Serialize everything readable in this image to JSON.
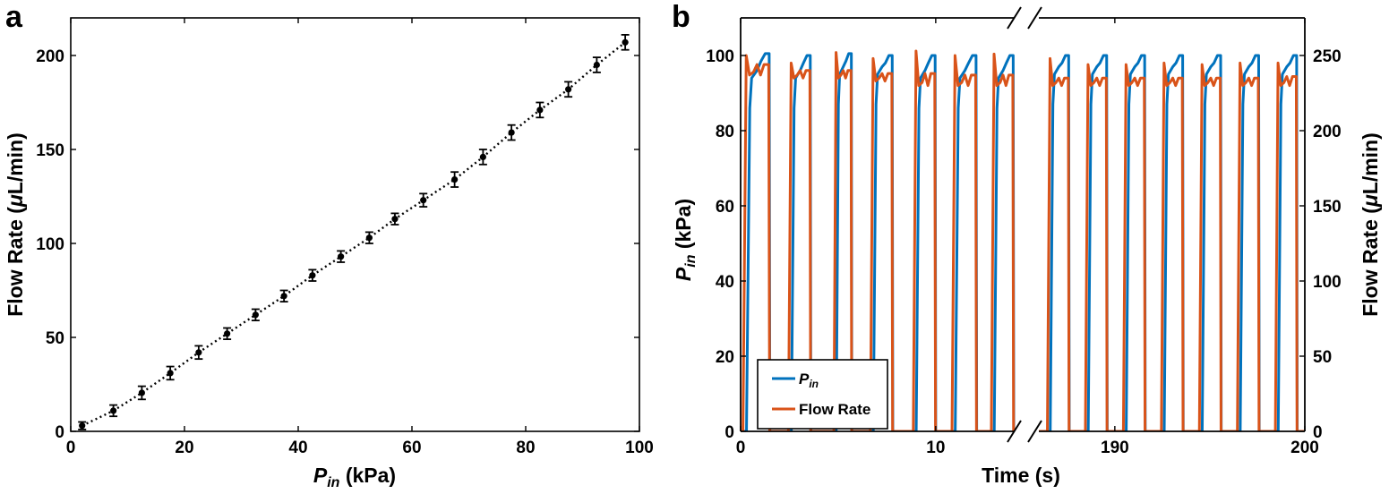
{
  "panel_a": {
    "letter": "a",
    "xlabel_italic": "P",
    "xlabel_sub": "in",
    "xlabel_unit": " (kPa)",
    "ylabel_pre": "Flow Rate (",
    "ylabel_mu": "μ",
    "ylabel_post": "L/min)"
  },
  "panel_b": {
    "letter": "b",
    "xlabel": "Time (s)",
    "ylabel_left_italic": "P",
    "ylabel_left_sub": "in",
    "ylabel_left_unit": " (kPa)",
    "ylabel_right_pre": "Flow Rate (",
    "ylabel_right_mu": "μ",
    "ylabel_right_post": "L/min)",
    "legend": {
      "pin_italic": "P",
      "pin_sub": "in",
      "flow": "Flow Rate"
    }
  },
  "chart_data": [
    {
      "panel": "a",
      "type": "scatter",
      "x": [
        2,
        7.5,
        12.5,
        17.5,
        22.5,
        27.5,
        32.5,
        37.5,
        42.5,
        47.5,
        52.5,
        57,
        62,
        67.5,
        72.5,
        77.5,
        82.5,
        87.5,
        92.5,
        97.5
      ],
      "y": [
        3,
        11,
        20.5,
        31,
        42,
        52,
        62,
        72,
        83,
        93,
        103,
        113,
        123,
        134,
        146,
        159,
        171,
        182,
        195,
        207
      ],
      "error": [
        2,
        3,
        3.5,
        3.5,
        3.5,
        3,
        3,
        3,
        3,
        3,
        3,
        3,
        3.5,
        4,
        4,
        4,
        4,
        4,
        4,
        4
      ],
      "fit": "dotted",
      "xlim": [
        0,
        100
      ],
      "ylim": [
        0,
        220
      ],
      "xticks": [
        0,
        20,
        40,
        60,
        80,
        100
      ],
      "yticks": [
        0,
        50,
        100,
        150,
        200
      ],
      "color": "#000000"
    },
    {
      "panel": "b",
      "type": "line",
      "broken_x_axis": true,
      "xticks": [
        0,
        10,
        190,
        200
      ],
      "ylim_left": [
        0,
        110
      ],
      "yticks_left": [
        0,
        20,
        40,
        60,
        80,
        100
      ],
      "ylim_right": [
        0,
        275
      ],
      "yticks_right": [
        0,
        50,
        100,
        150,
        200,
        250
      ],
      "legend_position": "bottom-left",
      "series": [
        {
          "name": "Pin",
          "color": "#0072BD",
          "pulses_segment1": [
            {
              "rise": 0.3,
              "fall": 1.5,
              "peaks": [
                94,
                100.5
              ]
            },
            {
              "rise": 2.6,
              "fall": 3.6,
              "peaks": [
                94,
                100
              ]
            },
            {
              "rise": 4.9,
              "fall": 5.7,
              "peaks": [
                95,
                100.5
              ]
            },
            {
              "rise": 6.8,
              "fall": 7.8,
              "peaks": [
                95,
                100
              ]
            },
            {
              "rise": 9.0,
              "fall": 10.0,
              "peaks": [
                94,
                100
              ]
            },
            {
              "rise": 11.0,
              "fall": 12.1,
              "peaks": [
                94,
                100
              ]
            },
            {
              "rise": 13.0,
              "fall": 14.0,
              "peaks": [
                94,
                100
              ]
            }
          ],
          "pulses_segment2": [
            {
              "rise": 186.6,
              "fall": 187.6,
              "peaks": [
                95,
                100
              ]
            },
            {
              "rise": 188.6,
              "fall": 189.6,
              "peaks": [
                95,
                100
              ]
            },
            {
              "rise": 190.6,
              "fall": 191.6,
              "peaks": [
                95,
                100
              ]
            },
            {
              "rise": 192.6,
              "fall": 193.6,
              "peaks": [
                95,
                100
              ]
            },
            {
              "rise": 194.6,
              "fall": 195.6,
              "peaks": [
                95,
                100
              ]
            },
            {
              "rise": 196.6,
              "fall": 197.6,
              "peaks": [
                95,
                100
              ]
            },
            {
              "rise": 198.6,
              "fall": 199.6,
              "peaks": [
                95,
                100
              ]
            }
          ]
        },
        {
          "name": "Flow Rate",
          "color": "#D95319",
          "pulses_segment1": [
            {
              "rise": 0.3,
              "fall": 1.5,
              "peaks": [
                250,
                237,
                244
              ]
            },
            {
              "rise": 2.6,
              "fall": 3.6,
              "peaks": [
                245,
                235,
                240
              ]
            },
            {
              "rise": 4.9,
              "fall": 5.7,
              "peaks": [
                252,
                235,
                240
              ]
            },
            {
              "rise": 6.8,
              "fall": 7.8,
              "peaks": [
                248,
                233,
                238
              ]
            },
            {
              "rise": 9.0,
              "fall": 10.0,
              "peaks": [
                253,
                230,
                238
              ]
            },
            {
              "rise": 11.0,
              "fall": 12.1,
              "peaks": [
                250,
                230,
                237
              ]
            },
            {
              "rise": 13.0,
              "fall": 14.0,
              "peaks": [
                251,
                230,
                237
              ]
            }
          ],
          "pulses_segment2": [
            {
              "rise": 186.6,
              "fall": 187.6,
              "peaks": [
                248,
                230,
                235
              ]
            },
            {
              "rise": 188.6,
              "fall": 189.6,
              "peaks": [
                244,
                230,
                235
              ]
            },
            {
              "rise": 190.6,
              "fall": 191.6,
              "peaks": [
                244,
                230,
                235
              ]
            },
            {
              "rise": 192.6,
              "fall": 193.6,
              "peaks": [
                245,
                230,
                235
              ]
            },
            {
              "rise": 194.6,
              "fall": 195.6,
              "peaks": [
                244,
                230,
                235
              ]
            },
            {
              "rise": 196.6,
              "fall": 197.6,
              "peaks": [
                245,
                230,
                235
              ]
            },
            {
              "rise": 198.6,
              "fall": 199.6,
              "peaks": [
                245,
                230,
                236
              ]
            }
          ]
        }
      ]
    }
  ]
}
